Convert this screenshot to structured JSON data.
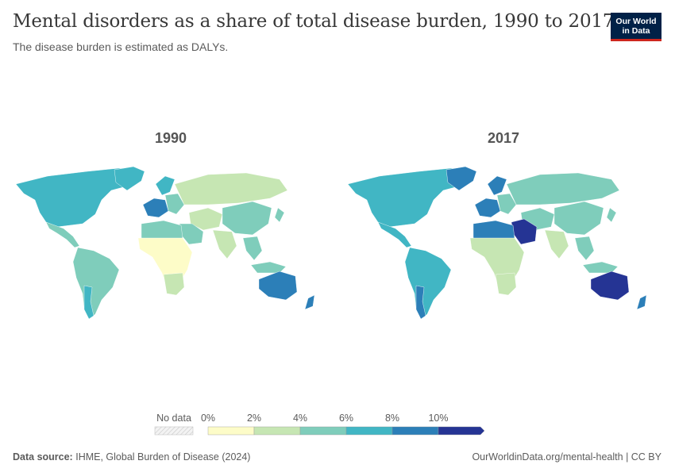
{
  "header": {
    "title": "Mental disorders as a share of total disease burden, 1990 to 2017",
    "subtitle": "The disease burden is estimated as DALYs."
  },
  "logo": {
    "line1": "Our World",
    "line2": "in Data"
  },
  "maps": [
    {
      "year": "1990"
    },
    {
      "year": "2017"
    }
  ],
  "legend": {
    "no_data_label": "No data",
    "bins": [
      {
        "label": "0%",
        "color": "#fdfcc8"
      },
      {
        "label": "2%",
        "color": "#c6e6b3"
      },
      {
        "label": "4%",
        "color": "#7fcdbb"
      },
      {
        "label": "6%",
        "color": "#41b6c4"
      },
      {
        "label": "8%",
        "color": "#2c7fb8"
      },
      {
        "label": "10%",
        "color": "#253494"
      }
    ]
  },
  "footer": {
    "source_label": "Data source:",
    "source_text": "IHME, Global Burden of Disease (2024)",
    "url_text": "OurWorldinData.org/mental-health | CC BY"
  }
}
